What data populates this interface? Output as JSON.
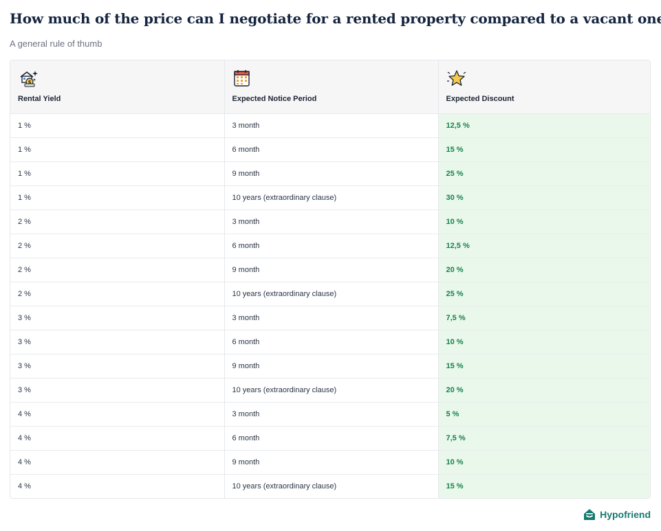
{
  "title": "How much of the price can I negotiate for a rented property compared to a vacant one?",
  "subtitle": "A general rule of thumb",
  "table": {
    "headers": [
      {
        "label": "Rental Yield",
        "icon": "house-money-icon"
      },
      {
        "label": "Expected Notice Period",
        "icon": "calendar-icon"
      },
      {
        "label": "Expected Discount",
        "icon": "star-icon"
      }
    ],
    "rows": [
      [
        "1 %",
        "3 month",
        "12,5 %"
      ],
      [
        "1 %",
        "6 month",
        "15 %"
      ],
      [
        "1 %",
        "9 month",
        "25 %"
      ],
      [
        "1 %",
        "10 years  (extraordinary clause)",
        "30 %"
      ],
      [
        "2 %",
        "3 month",
        "10 %"
      ],
      [
        "2 %",
        "6 month",
        "12,5 %"
      ],
      [
        "2 %",
        "9 month",
        "20 %"
      ],
      [
        "2 %",
        "10 years (extraordinary clause)",
        "25 %"
      ],
      [
        "3 %",
        "3 month",
        "7,5 %"
      ],
      [
        "3 %",
        "6 month",
        "10 %"
      ],
      [
        "3 %",
        "9 month",
        "15 %"
      ],
      [
        "3 %",
        "10 years (extraordinary clause)",
        "20 %"
      ],
      [
        "4 %",
        "3 month",
        "5 %"
      ],
      [
        "4 %",
        "6 month",
        "7,5 %"
      ],
      [
        "4 %",
        "9 month",
        "10 %"
      ],
      [
        "4 %",
        "10 years (extraordinary clause)",
        "15 %"
      ]
    ]
  },
  "colors": {
    "discount_bg": "#eaf8ec",
    "discount_text": "#15814a",
    "brand": "#167a70"
  },
  "brand": {
    "name": "Hypofriend",
    "icon": "hypofriend-logo-icon"
  }
}
